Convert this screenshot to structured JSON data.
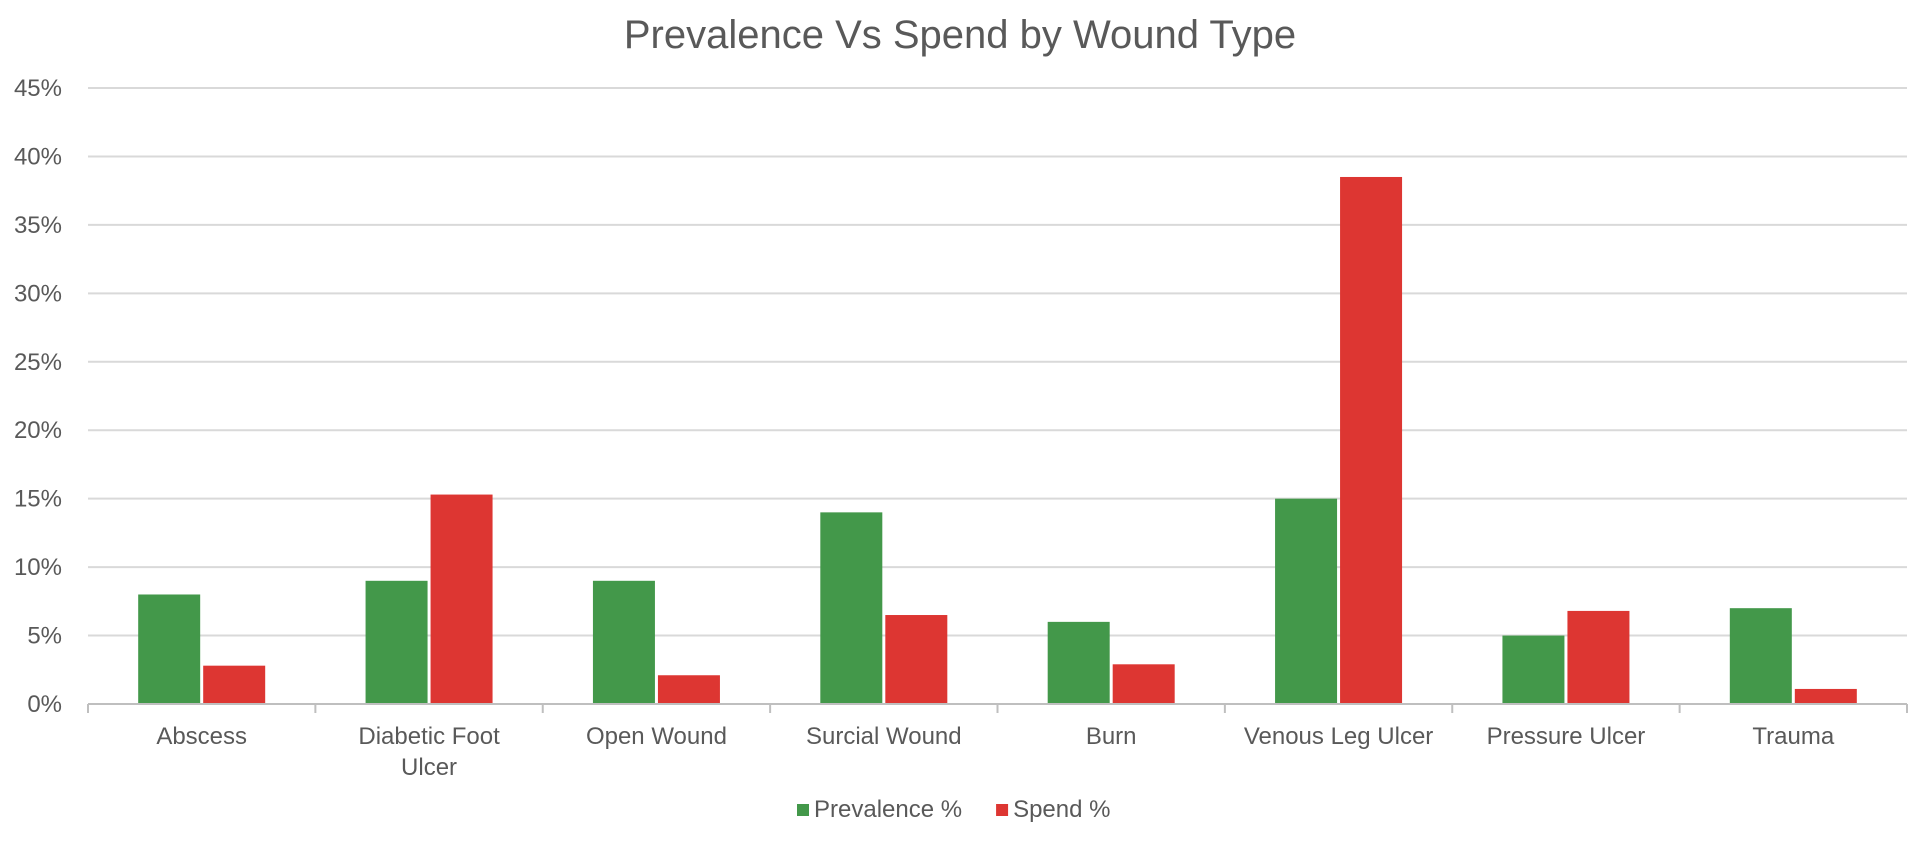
{
  "chart_data": {
    "type": "bar",
    "title": "Prevalence Vs Spend by Wound Type",
    "xlabel": "",
    "ylabel": "",
    "categories": [
      [
        "Abscess"
      ],
      [
        "Diabetic Foot",
        "Ulcer"
      ],
      [
        "Open Wound"
      ],
      [
        "Surcial Wound"
      ],
      [
        "Burn"
      ],
      [
        "Venous Leg Ulcer"
      ],
      [
        "Pressure Ulcer"
      ],
      [
        "Trauma"
      ]
    ],
    "series": [
      {
        "name": "Prevalence %",
        "color": "#43984A",
        "values": [
          8,
          9,
          9,
          14,
          6,
          15,
          5,
          7
        ]
      },
      {
        "name": "Spend %",
        "color": "#DD3632",
        "values": [
          2.8,
          15.3,
          2.1,
          6.5,
          2.9,
          38.5,
          6.8,
          1.1
        ]
      }
    ],
    "ylim": [
      0,
      45
    ],
    "yticks": [
      "0%",
      "5%",
      "10%",
      "15%",
      "20%",
      "25%",
      "30%",
      "35%",
      "40%",
      "45%"
    ],
    "grid": true,
    "legend_position": "bottom",
    "colors": {
      "grid": "#D9D9D9",
      "axis": "#BFBFBF",
      "text": "#595959"
    }
  }
}
